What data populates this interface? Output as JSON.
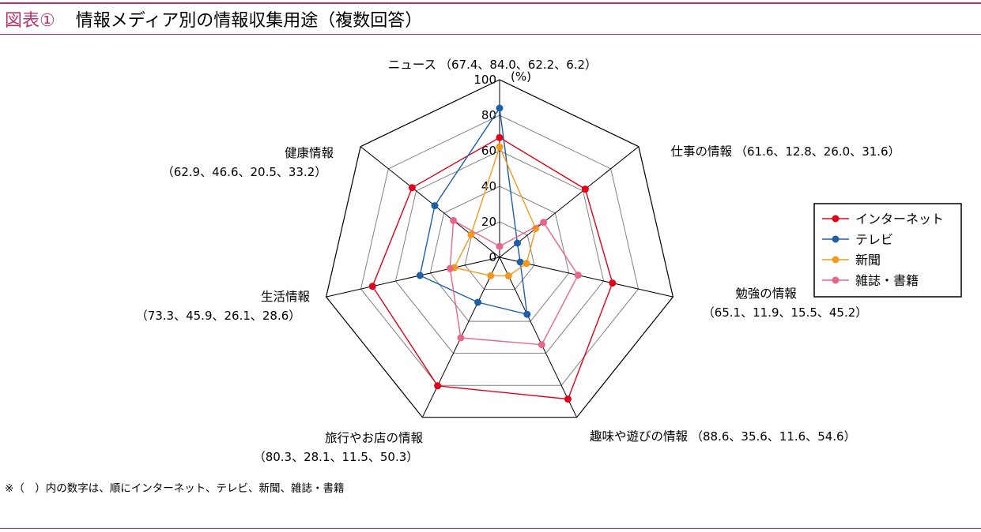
{
  "header": {
    "figure_label": "図表①",
    "title": "情報メディア別の情報収集用途（複数回答）"
  },
  "footnote": "※（　）内の数字は、順にインターネット、テレビ、新聞、雑誌・書籍",
  "colors": {
    "accent": "#b8336a",
    "grid_outer": "#000000",
    "grid_inner": "#808080"
  },
  "chart_data": {
    "type": "radar",
    "unit_label": "(%)",
    "rlim": [
      0,
      100
    ],
    "ticks": [
      0,
      20,
      40,
      60,
      80,
      100
    ],
    "axes": [
      {
        "name": "ニュース",
        "values_text": "（67.4、84.0、62.2、6.2）"
      },
      {
        "name": "仕事の情報",
        "values_text": "（61.6、12.8、26.0、31.6）"
      },
      {
        "name": "勉強の情報",
        "values_text": "（65.1、11.9、15.5、45.2）"
      },
      {
        "name": "趣味や遊びの情報",
        "values_text": "（88.6、35.6、11.6、54.6）"
      },
      {
        "name": "旅行やお店の情報",
        "values_text": "（80.3、28.1、11.5、50.3）"
      },
      {
        "name": "生活情報",
        "values_text": "（73.3、45.9、26.1、28.6）"
      },
      {
        "name": "健康情報",
        "values_text": "（62.9、46.6、20.5、33.2）"
      }
    ],
    "series": [
      {
        "name": "インターネット",
        "color": "#e0001a",
        "values": [
          67.4,
          61.6,
          65.1,
          88.6,
          80.3,
          73.3,
          62.9
        ]
      },
      {
        "name": "テレビ",
        "color": "#1f5fa6",
        "values": [
          84.0,
          12.8,
          11.9,
          35.6,
          28.1,
          45.9,
          46.6
        ]
      },
      {
        "name": "新聞",
        "color": "#f39a1e",
        "values": [
          62.2,
          26.0,
          15.5,
          11.6,
          11.5,
          26.1,
          20.5
        ]
      },
      {
        "name": "雑誌・書籍",
        "color": "#e8668a",
        "values": [
          6.2,
          31.6,
          45.2,
          54.6,
          50.3,
          28.6,
          33.2
        ]
      }
    ],
    "legend": "right"
  }
}
